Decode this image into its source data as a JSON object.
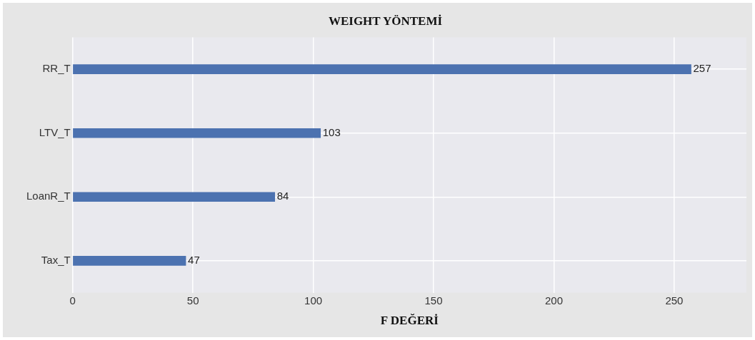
{
  "chart_data": {
    "type": "bar",
    "orientation": "horizontal",
    "title": "WEIGHT YÖNTEMİ",
    "xlabel": "F DEĞERİ",
    "categories": [
      "RR_T",
      "LTV_T",
      "LoanR_T",
      "Tax_T"
    ],
    "values": [
      257,
      103,
      84,
      47
    ],
    "color": "#4c72b0",
    "xlim": [
      0,
      280
    ],
    "xticks": [
      0,
      50,
      100,
      150,
      200,
      250
    ],
    "grid": true,
    "data_labels": true
  }
}
